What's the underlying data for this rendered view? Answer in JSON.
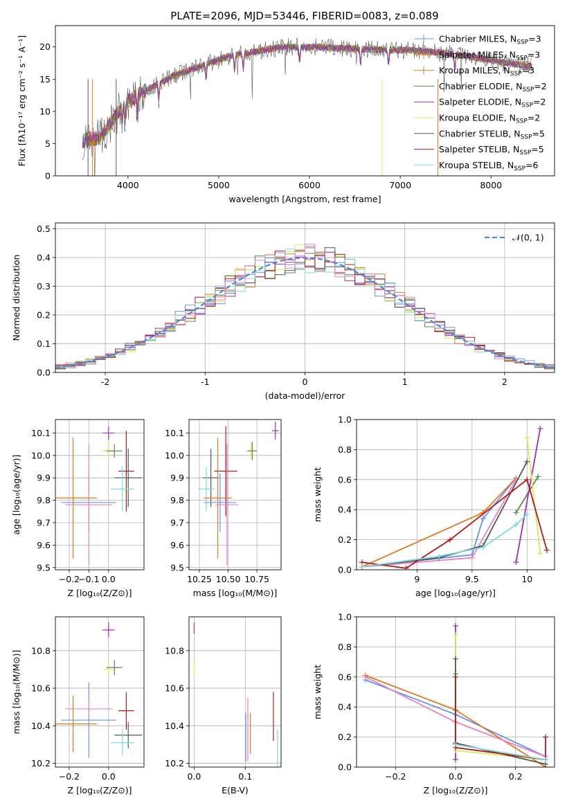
{
  "figure_title": "PLATE=2096, MJD=53446, FIBERID=0083, z=0.089",
  "series_colors": [
    "#6495ed",
    "#e07820",
    "#c08a20",
    "#5a8a4a",
    "#9b30b0",
    "#d4e860",
    "#555555",
    "#b01818",
    "#80d8e0"
  ],
  "pink_color": "#e680c0",
  "chart_data": [
    {
      "id": "spectrum",
      "type": "line",
      "title": "PLATE=2096, MJD=53446, FIBERID=0083, z=0.089",
      "xlabel": "wavelength [Angstrom, rest frame]",
      "ylabel": "Flux [fλ10⁻¹⁷ erg cm⁻² s⁻¹ A⁻¹]",
      "xlim": [
        3200,
        8700
      ],
      "ylim": [
        0,
        23.3
      ],
      "xticks": [
        4000,
        5000,
        6000,
        7000,
        8000
      ],
      "yticks": [
        0,
        5,
        10,
        15,
        20
      ],
      "legend_position": "top-right",
      "legend": [
        "Chabrier MILES, N_SSP=3",
        "Salpeter MILES, N_SSP=3",
        "Kroupa MILES, N_SSP=3",
        "Chabrier ELODIE, N_SSP=2",
        "Salpeter ELODIE, N_SSP=2",
        "Kroupa ELODIE, N_SSP=2",
        "Chabrier STELIB, N_SSP=5",
        "Salpeter STELIB, N_SSP=5",
        "Kroupa STELIB, N_SSP=6"
      ],
      "continuum": {
        "x": [
          3500,
          3700,
          3800,
          3900,
          4000,
          4100,
          4300,
          4500,
          4700,
          4900,
          5100,
          5300,
          5500,
          5700,
          5900,
          6100,
          6300,
          6500,
          6700,
          6900,
          7100,
          7300,
          7500,
          7700,
          7900,
          8100,
          8300,
          8450
        ],
        "y": [
          5.5,
          6.0,
          8.0,
          10.0,
          11.5,
          12.5,
          14.0,
          15.5,
          16.5,
          17.5,
          18.5,
          19.0,
          19.5,
          20.0,
          20.0,
          20.0,
          19.8,
          19.7,
          19.6,
          19.5,
          19.5,
          19.3,
          19.0,
          18.6,
          18.2,
          17.7,
          17.2,
          17.0
        ]
      },
      "grid": false
    },
    {
      "id": "residuals",
      "type": "line",
      "xlabel": "(data-model)/error",
      "ylabel": "Normed distribution",
      "xlim": [
        -2.5,
        2.5
      ],
      "ylim": [
        0,
        0.52
      ],
      "xticks": [
        -2,
        -1,
        0,
        1,
        2
      ],
      "yticks": [
        0.0,
        0.1,
        0.2,
        0.3,
        0.4,
        0.5
      ],
      "legend": [
        "𝒩(0, 1)"
      ],
      "legend_position": "top-right",
      "gaussian": {
        "mu": 0,
        "sigma": 1
      },
      "bin_width": 0.1,
      "grid": true
    },
    {
      "id": "age_vs_z",
      "type": "scatter",
      "xlabel": "Z [log₁₀(Z/Z⊙)]",
      "ylabel": "age  [log₁₀(age/yr)]",
      "xlim": [
        -0.27,
        0.18
      ],
      "ylim": [
        9.49,
        10.16
      ],
      "xticks": [
        -0.2,
        -0.1,
        0.0
      ],
      "xticklabels": [
        "−0.2",
        "−0.1",
        "0.0"
      ],
      "yticks": [
        9.5,
        9.6,
        9.7,
        9.8,
        9.9,
        10.0,
        10.1
      ],
      "points": [
        {
          "x": 0.0,
          "y": 10.1,
          "xerr": 0.03,
          "yerr": 0.03,
          "color": "#9b30b0"
        },
        {
          "x": 0.0,
          "y": 10.02,
          "xerr": 0.03,
          "yerr": 0.04,
          "color": "#d4e860"
        },
        {
          "x": 0.03,
          "y": 10.02,
          "xerr": 0.04,
          "yerr": 0.03,
          "color": "#5a8a4a"
        },
        {
          "x": 0.09,
          "y": 9.93,
          "xerr": 0.04,
          "yerr": 0.18,
          "color": "#b01818"
        },
        {
          "x": 0.1,
          "y": 9.9,
          "xerr": 0.07,
          "yerr": 0.13,
          "color": "#555555"
        },
        {
          "x": 0.07,
          "y": 9.85,
          "xerr": 0.06,
          "yerr": 0.1,
          "color": "#80d8e0"
        },
        {
          "x": -0.18,
          "y": 9.81,
          "xerr": 0.12,
          "yerr": 0.27,
          "color": "#e07820"
        },
        {
          "x": -0.1,
          "y": 9.79,
          "xerr": 0.14,
          "yerr": 0.13,
          "color": "#6495ed"
        },
        {
          "x": -0.1,
          "y": 9.78,
          "xerr": 0.12,
          "yerr": 0.27,
          "color": "#e680c0"
        }
      ],
      "grid": true
    },
    {
      "id": "age_vs_mass",
      "type": "scatter",
      "xlabel": "mass [log₁₀(M/M⊙)]",
      "ylabel": "",
      "xlim": [
        10.16,
        10.96
      ],
      "ylim": [
        9.49,
        10.16
      ],
      "xticks": [
        10.25,
        10.5,
        10.75
      ],
      "xticklabels": [
        "10.25",
        "10.50",
        "10.75"
      ],
      "yticks": [
        9.5,
        9.6,
        9.7,
        9.8,
        9.9,
        10.0,
        10.1
      ],
      "points": [
        {
          "x": 10.91,
          "y": 10.11,
          "xerr": 0.03,
          "yerr": 0.04,
          "color": "#9b30b0"
        },
        {
          "x": 10.7,
          "y": 10.02,
          "xerr": 0.04,
          "yerr": 0.04,
          "color": "#d4e860"
        },
        {
          "x": 10.71,
          "y": 10.02,
          "xerr": 0.04,
          "yerr": 0.04,
          "color": "#5a8a4a"
        },
        {
          "x": 10.48,
          "y": 9.93,
          "xerr": 0.1,
          "yerr": 0.2,
          "color": "#b01818"
        },
        {
          "x": 10.35,
          "y": 9.9,
          "xerr": 0.07,
          "yerr": 0.13,
          "color": "#555555"
        },
        {
          "x": 10.31,
          "y": 9.85,
          "xerr": 0.07,
          "yerr": 0.1,
          "color": "#80d8e0"
        },
        {
          "x": 10.41,
          "y": 9.81,
          "xerr": 0.12,
          "yerr": 0.27,
          "color": "#e07820"
        },
        {
          "x": 10.43,
          "y": 9.79,
          "xerr": 0.14,
          "yerr": 0.13,
          "color": "#6495ed"
        },
        {
          "x": 10.49,
          "y": 9.78,
          "xerr": 0.1,
          "yerr": 0.27,
          "color": "#e680c0"
        }
      ],
      "grid": true
    },
    {
      "id": "mw_vs_age",
      "type": "line",
      "xlabel": "age  [log₁₀(age/yr)]",
      "ylabel": "mass weight",
      "xlim": [
        8.45,
        10.25
      ],
      "ylim": [
        0.0,
        1.0
      ],
      "xticks": [
        9.0,
        9.5,
        10.0
      ],
      "yticks": [
        0.0,
        0.2,
        0.4,
        0.6,
        0.8,
        1.0
      ],
      "series": [
        {
          "color": "#6495ed",
          "x": [
            8.5,
            9.5,
            9.6,
            9.9
          ],
          "y": [
            0.02,
            0.1,
            0.34,
            0.61
          ]
        },
        {
          "color": "#e07820",
          "x": [
            8.5,
            9.6,
            9.9
          ],
          "y": [
            0.02,
            0.38,
            0.61
          ]
        },
        {
          "color": "#e680c0",
          "x": [
            8.5,
            9.5,
            9.9
          ],
          "y": [
            0.02,
            0.08,
            0.6
          ]
        },
        {
          "color": "#5a8a4a",
          "x": [
            9.9,
            10.1
          ],
          "y": [
            0.38,
            0.62
          ]
        },
        {
          "color": "#9b30b0",
          "x": [
            9.9,
            10.12
          ],
          "y": [
            0.05,
            0.94
          ]
        },
        {
          "color": "#d4e860",
          "x": [
            10.0,
            10.12
          ],
          "y": [
            0.88,
            0.11
          ]
        },
        {
          "color": "#555555",
          "x": [
            8.5,
            9.2,
            9.6,
            10.0
          ],
          "y": [
            0.02,
            0.08,
            0.16,
            0.72
          ]
        },
        {
          "color": "#b01818",
          "x": [
            8.5,
            8.9,
            9.3,
            10.0,
            10.18
          ],
          "y": [
            0.05,
            0.01,
            0.2,
            0.6,
            0.13
          ]
        },
        {
          "color": "#80d8e0",
          "x": [
            8.5,
            9.2,
            9.6,
            9.9,
            10.0
          ],
          "y": [
            0.02,
            0.09,
            0.15,
            0.3,
            0.37
          ]
        }
      ],
      "grid": true
    },
    {
      "id": "mass_vs_z",
      "type": "scatter",
      "xlabel": "Z [log₁₀(Z/Z⊙)]",
      "ylabel": "mass [log₁₀(M/M⊙)]",
      "xlim": [
        -0.27,
        0.18
      ],
      "ylim": [
        10.18,
        10.98
      ],
      "xticks": [
        -0.2,
        0.0
      ],
      "xticklabels": [
        "−0.2",
        "0.0"
      ],
      "yticks": [
        10.2,
        10.4,
        10.6,
        10.8
      ],
      "points": [
        {
          "x": 0.0,
          "y": 10.91,
          "xerr": 0.03,
          "yerr": 0.04,
          "color": "#9b30b0"
        },
        {
          "x": 0.0,
          "y": 10.7,
          "xerr": 0.03,
          "yerr": 0.04,
          "color": "#d4e860"
        },
        {
          "x": 0.03,
          "y": 10.71,
          "xerr": 0.04,
          "yerr": 0.04,
          "color": "#5a8a4a"
        },
        {
          "x": 0.09,
          "y": 10.48,
          "xerr": 0.04,
          "yerr": 0.1,
          "color": "#b01818"
        },
        {
          "x": 0.1,
          "y": 10.35,
          "xerr": 0.07,
          "yerr": 0.07,
          "color": "#555555"
        },
        {
          "x": 0.07,
          "y": 10.31,
          "xerr": 0.06,
          "yerr": 0.07,
          "color": "#80d8e0"
        },
        {
          "x": -0.18,
          "y": 10.41,
          "xerr": 0.12,
          "yerr": 0.15,
          "color": "#e07820"
        },
        {
          "x": -0.1,
          "y": 10.43,
          "xerr": 0.14,
          "yerr": 0.2,
          "color": "#6495ed"
        },
        {
          "x": -0.1,
          "y": 10.49,
          "xerr": 0.12,
          "yerr": 0.05,
          "color": "#e680c0"
        }
      ],
      "grid": true
    },
    {
      "id": "mass_vs_ebv",
      "type": "scatter",
      "xlabel": "E(B-V)",
      "ylabel": "",
      "xlim": [
        -0.01,
        0.17
      ],
      "ylim": [
        10.18,
        10.98
      ],
      "xticks": [
        0.0,
        0.1
      ],
      "xticklabels": [
        "0.0",
        "0.1"
      ],
      "yticks": [
        10.2,
        10.4,
        10.6,
        10.8
      ],
      "points": [
        {
          "x": 0.0,
          "y": 10.92,
          "xerr": 0,
          "yerr": 0.03,
          "color": "#9b30b0"
        },
        {
          "x": 0.0,
          "y": 10.7,
          "xerr": 0,
          "yerr": 0.04,
          "color": "#d4e860"
        },
        {
          "x": 0.105,
          "y": 10.38,
          "xerr": 0,
          "yerr": 0.17,
          "color": "#e680c0"
        },
        {
          "x": 0.101,
          "y": 10.34,
          "xerr": 0,
          "yerr": 0.13,
          "color": "#6495ed"
        },
        {
          "x": 0.11,
          "y": 10.36,
          "xerr": 0,
          "yerr": 0.11,
          "color": "#e07820"
        },
        {
          "x": 0.155,
          "y": 10.45,
          "xerr": 0,
          "yerr": 0.13,
          "color": "#b01818"
        },
        {
          "x": 0.163,
          "y": 10.28,
          "xerr": 0,
          "yerr": 0.1,
          "color": "#80d8e0"
        }
      ],
      "grid": true
    },
    {
      "id": "mw_vs_z",
      "type": "line",
      "xlabel": "Z [log₁₀(Z/Z⊙)]",
      "ylabel": "mass weight",
      "xlim": [
        -0.33,
        0.33
      ],
      "ylim": [
        0.0,
        1.0
      ],
      "xticks": [
        -0.2,
        0.0,
        0.2
      ],
      "xticklabels": [
        "−0.2",
        "0.0",
        "0.2"
      ],
      "yticks": [
        0.0,
        0.2,
        0.4,
        0.6,
        0.8,
        1.0
      ],
      "series": [
        {
          "color": "#6495ed",
          "x": [
            -0.3,
            0.0,
            0.3
          ],
          "y": [
            0.58,
            0.35,
            0.07
          ]
        },
        {
          "color": "#e07820",
          "x": [
            -0.3,
            0.0,
            0.3
          ],
          "y": [
            0.61,
            0.38,
            0.0
          ]
        },
        {
          "color": "#e680c0",
          "x": [
            -0.3,
            0.0,
            0.3
          ],
          "y": [
            0.6,
            0.3,
            0.07
          ]
        },
        {
          "color": "#5a8a4a",
          "x": [
            0.0,
            0.0
          ],
          "y": [
            0.62,
            0.38
          ]
        },
        {
          "color": "#9b30b0",
          "x": [
            0.0,
            0.0
          ],
          "y": [
            0.94,
            0.05
          ]
        },
        {
          "color": "#d4e860",
          "x": [
            0.0,
            0.0,
            0.3
          ],
          "y": [
            0.88,
            0.11,
            0.05
          ]
        },
        {
          "color": "#555555",
          "x": [
            0.0,
            0.0,
            0.3
          ],
          "y": [
            0.72,
            0.16,
            0.02
          ]
        },
        {
          "color": "#b01818",
          "x": [
            0.0,
            0.0,
            0.3,
            0.3
          ],
          "y": [
            0.6,
            0.13,
            0.05,
            0.2
          ]
        },
        {
          "color": "#80d8e0",
          "x": [
            0.0,
            0.3
          ],
          "y": [
            0.15,
            0.05
          ]
        }
      ],
      "grid": true
    }
  ]
}
